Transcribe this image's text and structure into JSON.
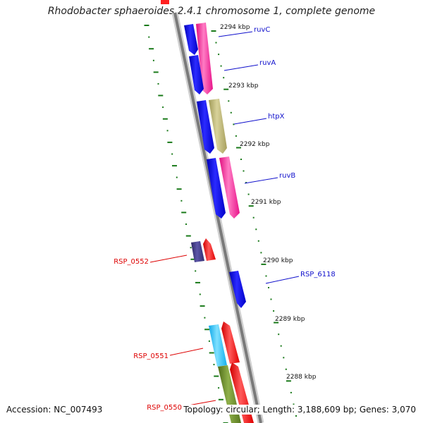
{
  "title": "Rhodobacter sphaeroides 2.4.1 chromosome 1, complete genome",
  "accession": "Accession: NC_007493",
  "summary": "Topology: circular; Length: 3,188,609 bp; Genes: 3,070",
  "colors": {
    "backbone": "#808080",
    "tick": "#1a7a1a",
    "forward_label": "#1010cc",
    "reverse_label": "#dd0000",
    "cds_blue": "#0000ee",
    "gene_pink": "#ff2a9a",
    "gene_khaki": "#b8b070",
    "gene_navy": "#3d3880",
    "gene_red": "#ff0000",
    "gene_cyan": "#22c6ff",
    "gene_olive": "#6a8c28"
  },
  "kbp_labels": [
    "2294 kbp",
    "2293 kbp",
    "2292 kbp",
    "2291 kbp",
    "2290 kbp",
    "2289 kbp",
    "2288 kbp"
  ],
  "gene_labels": [
    {
      "text": "ruvC",
      "strand": "forward"
    },
    {
      "text": "ruvA",
      "strand": "forward"
    },
    {
      "text": "htpX",
      "strand": "forward"
    },
    {
      "text": "ruvB",
      "strand": "forward"
    },
    {
      "text": "RSP_6118",
      "strand": "forward"
    },
    {
      "text": "RSP_0552",
      "strand": "reverse"
    },
    {
      "text": "RSP_0551",
      "strand": "reverse"
    },
    {
      "text": "RSP_0550",
      "strand": "reverse"
    }
  ]
}
